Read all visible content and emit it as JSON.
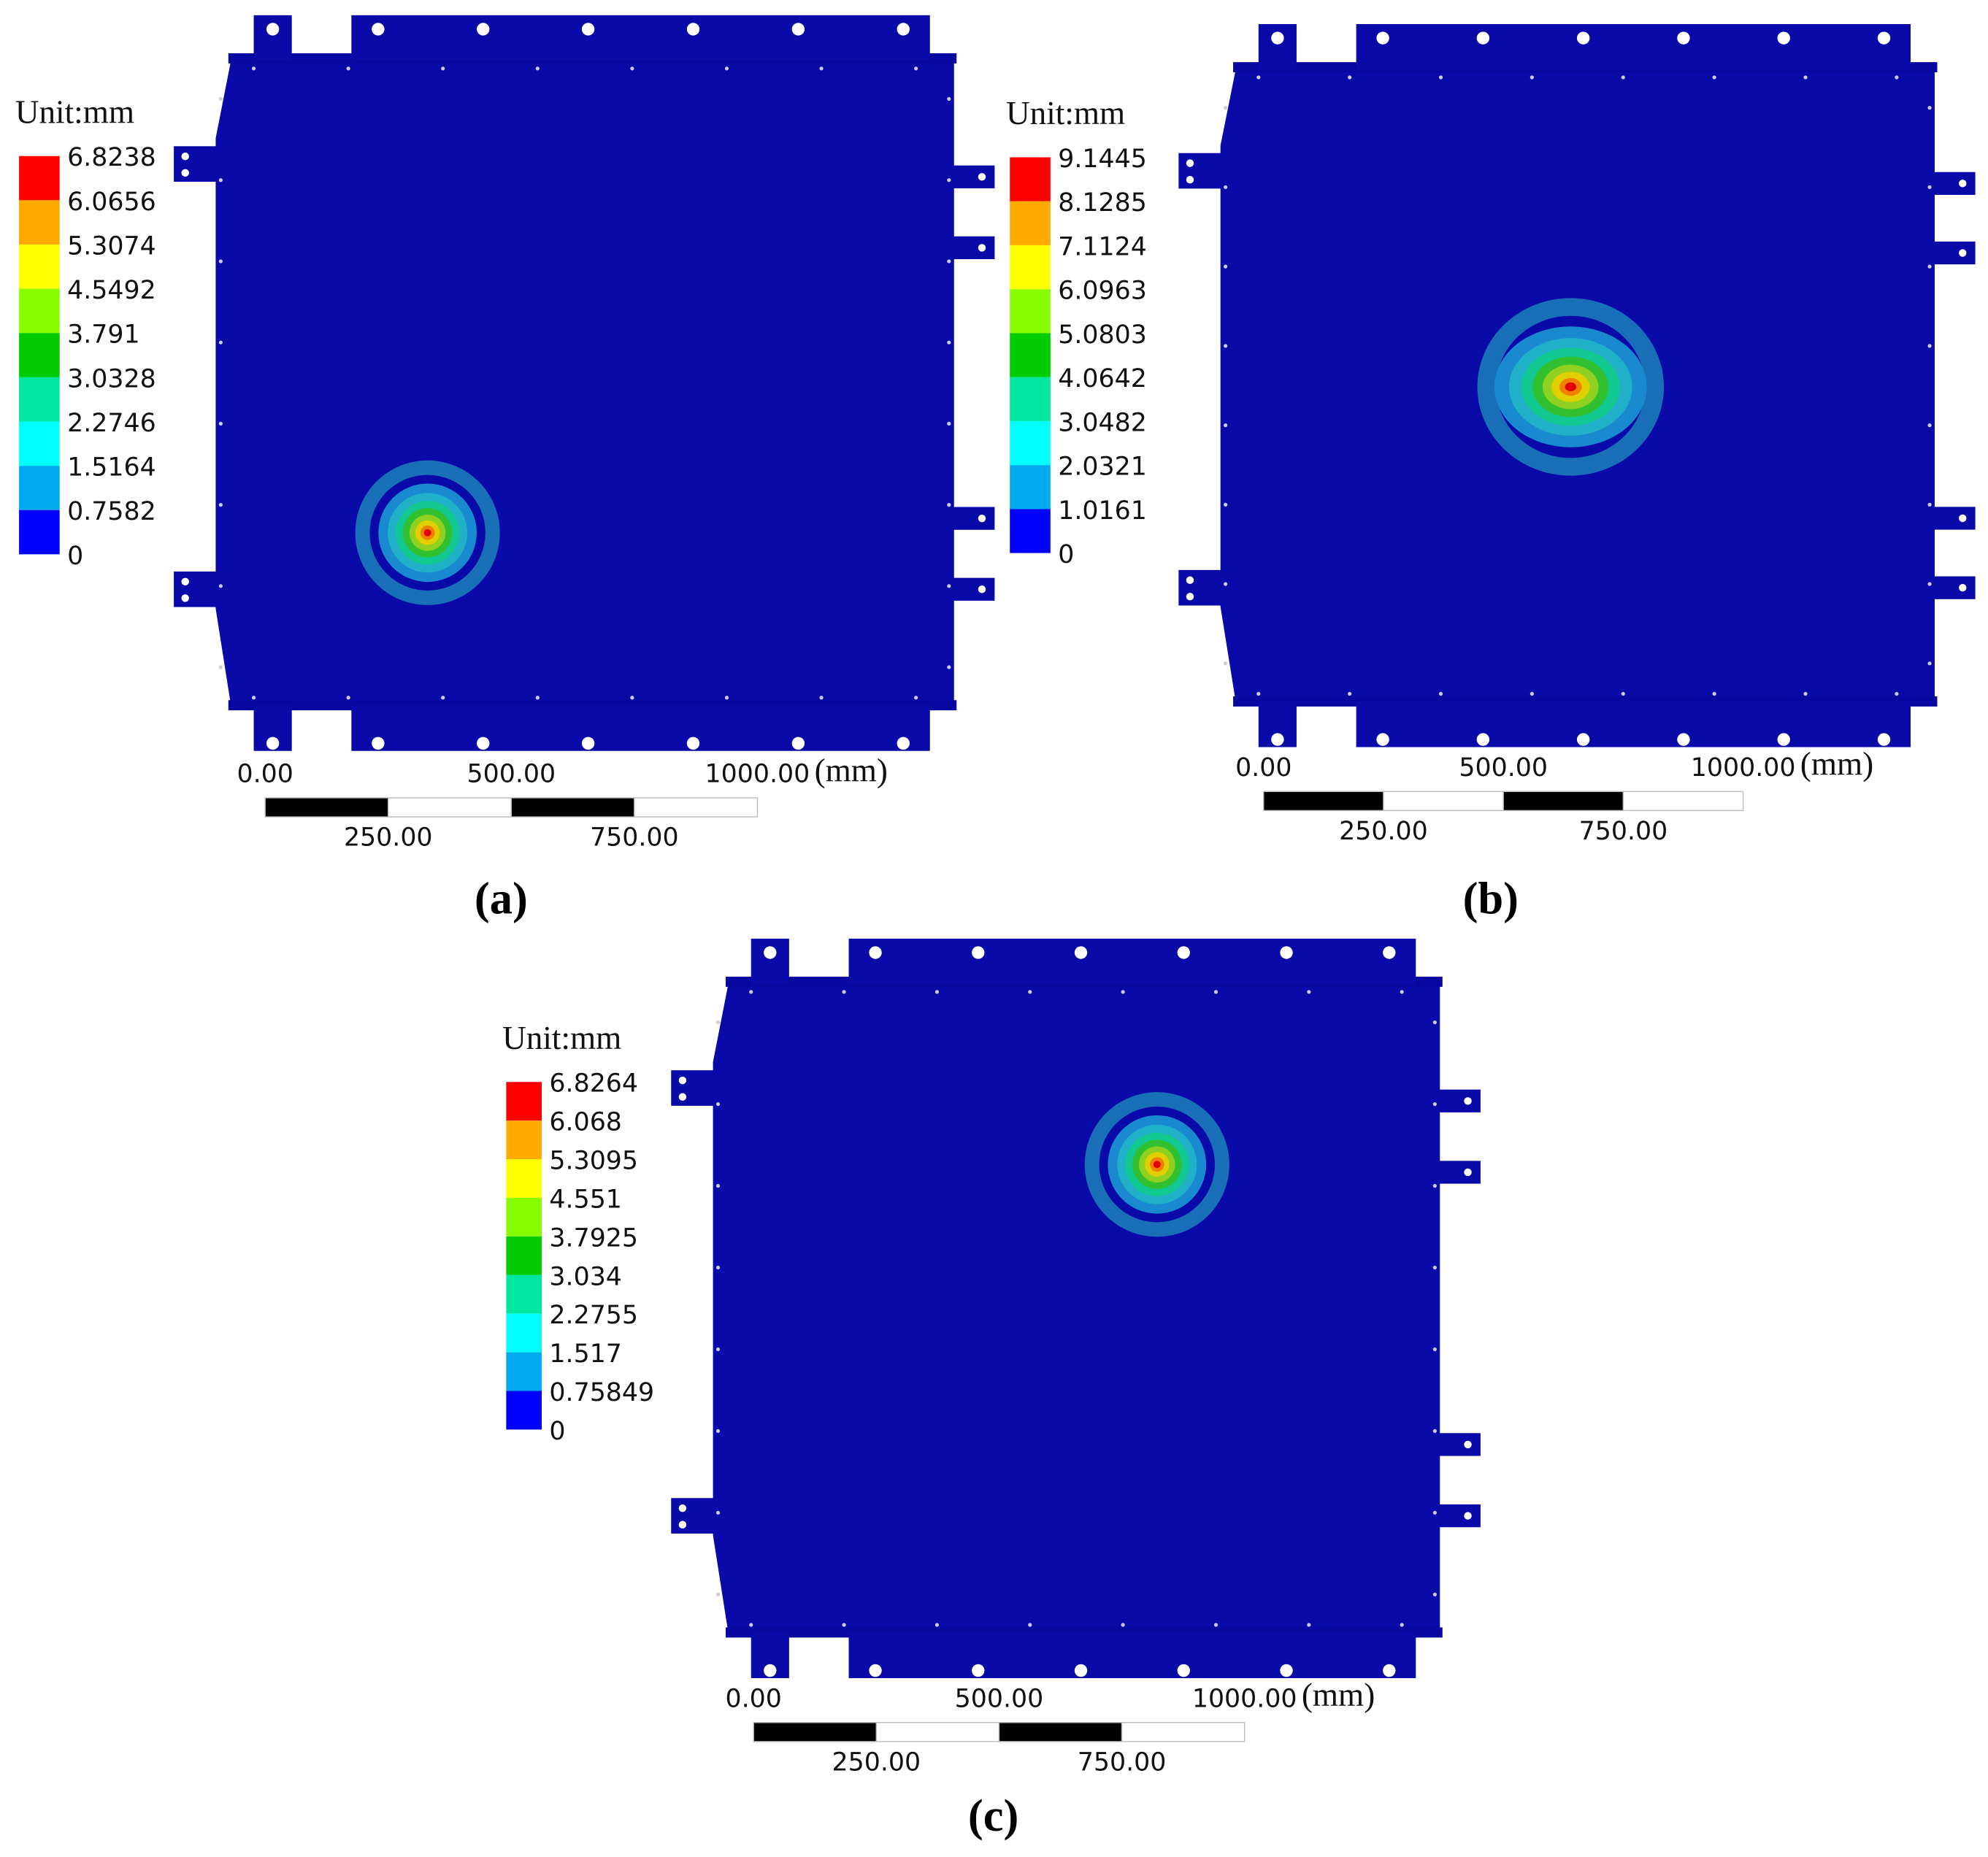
{
  "panels": [
    {
      "legend_title": "Unit:mm",
      "legend_labels": [
        "6.8238",
        "6.0656",
        "5.3074",
        "4.5492",
        "3.791",
        "3.0328",
        "2.2746",
        "1.5164",
        "0.7582",
        "0"
      ],
      "scale_labels": {
        "zero": "0.00",
        "mid": "500.00",
        "end": "1000.00",
        "unit": "(mm)",
        "q1": "250.00",
        "q3": "750.00"
      },
      "caption": "(a)"
    },
    {
      "legend_title": "Unit:mm",
      "legend_labels": [
        "9.1445",
        "8.1285",
        "7.1124",
        "6.0963",
        "5.0803",
        "4.0642",
        "3.0482",
        "2.0321",
        "1.0161",
        "0"
      ],
      "scale_labels": {
        "zero": "0.00",
        "mid": "500.00",
        "end": "1000.00",
        "unit": "(mm)",
        "q1": "250.00",
        "q3": "750.00"
      },
      "caption": "(b)"
    },
    {
      "legend_title": "Unit:mm",
      "legend_labels": [
        "6.8264",
        "6.068",
        "5.3095",
        "4.551",
        "3.7925",
        "3.034",
        "2.2755",
        "1.517",
        "0.75849",
        "0"
      ],
      "scale_labels": {
        "zero": "0.00",
        "mid": "500.00",
        "end": "1000.00",
        "unit": "(mm)",
        "q1": "250.00",
        "q3": "750.00"
      },
      "caption": "(c)"
    }
  ],
  "legend_colors": [
    "#ff0000",
    "#ffaa00",
    "#ffff00",
    "#88ff00",
    "#00cc00",
    "#00e8a0",
    "#00ffff",
    "#00aaee",
    "#0000ff"
  ]
}
